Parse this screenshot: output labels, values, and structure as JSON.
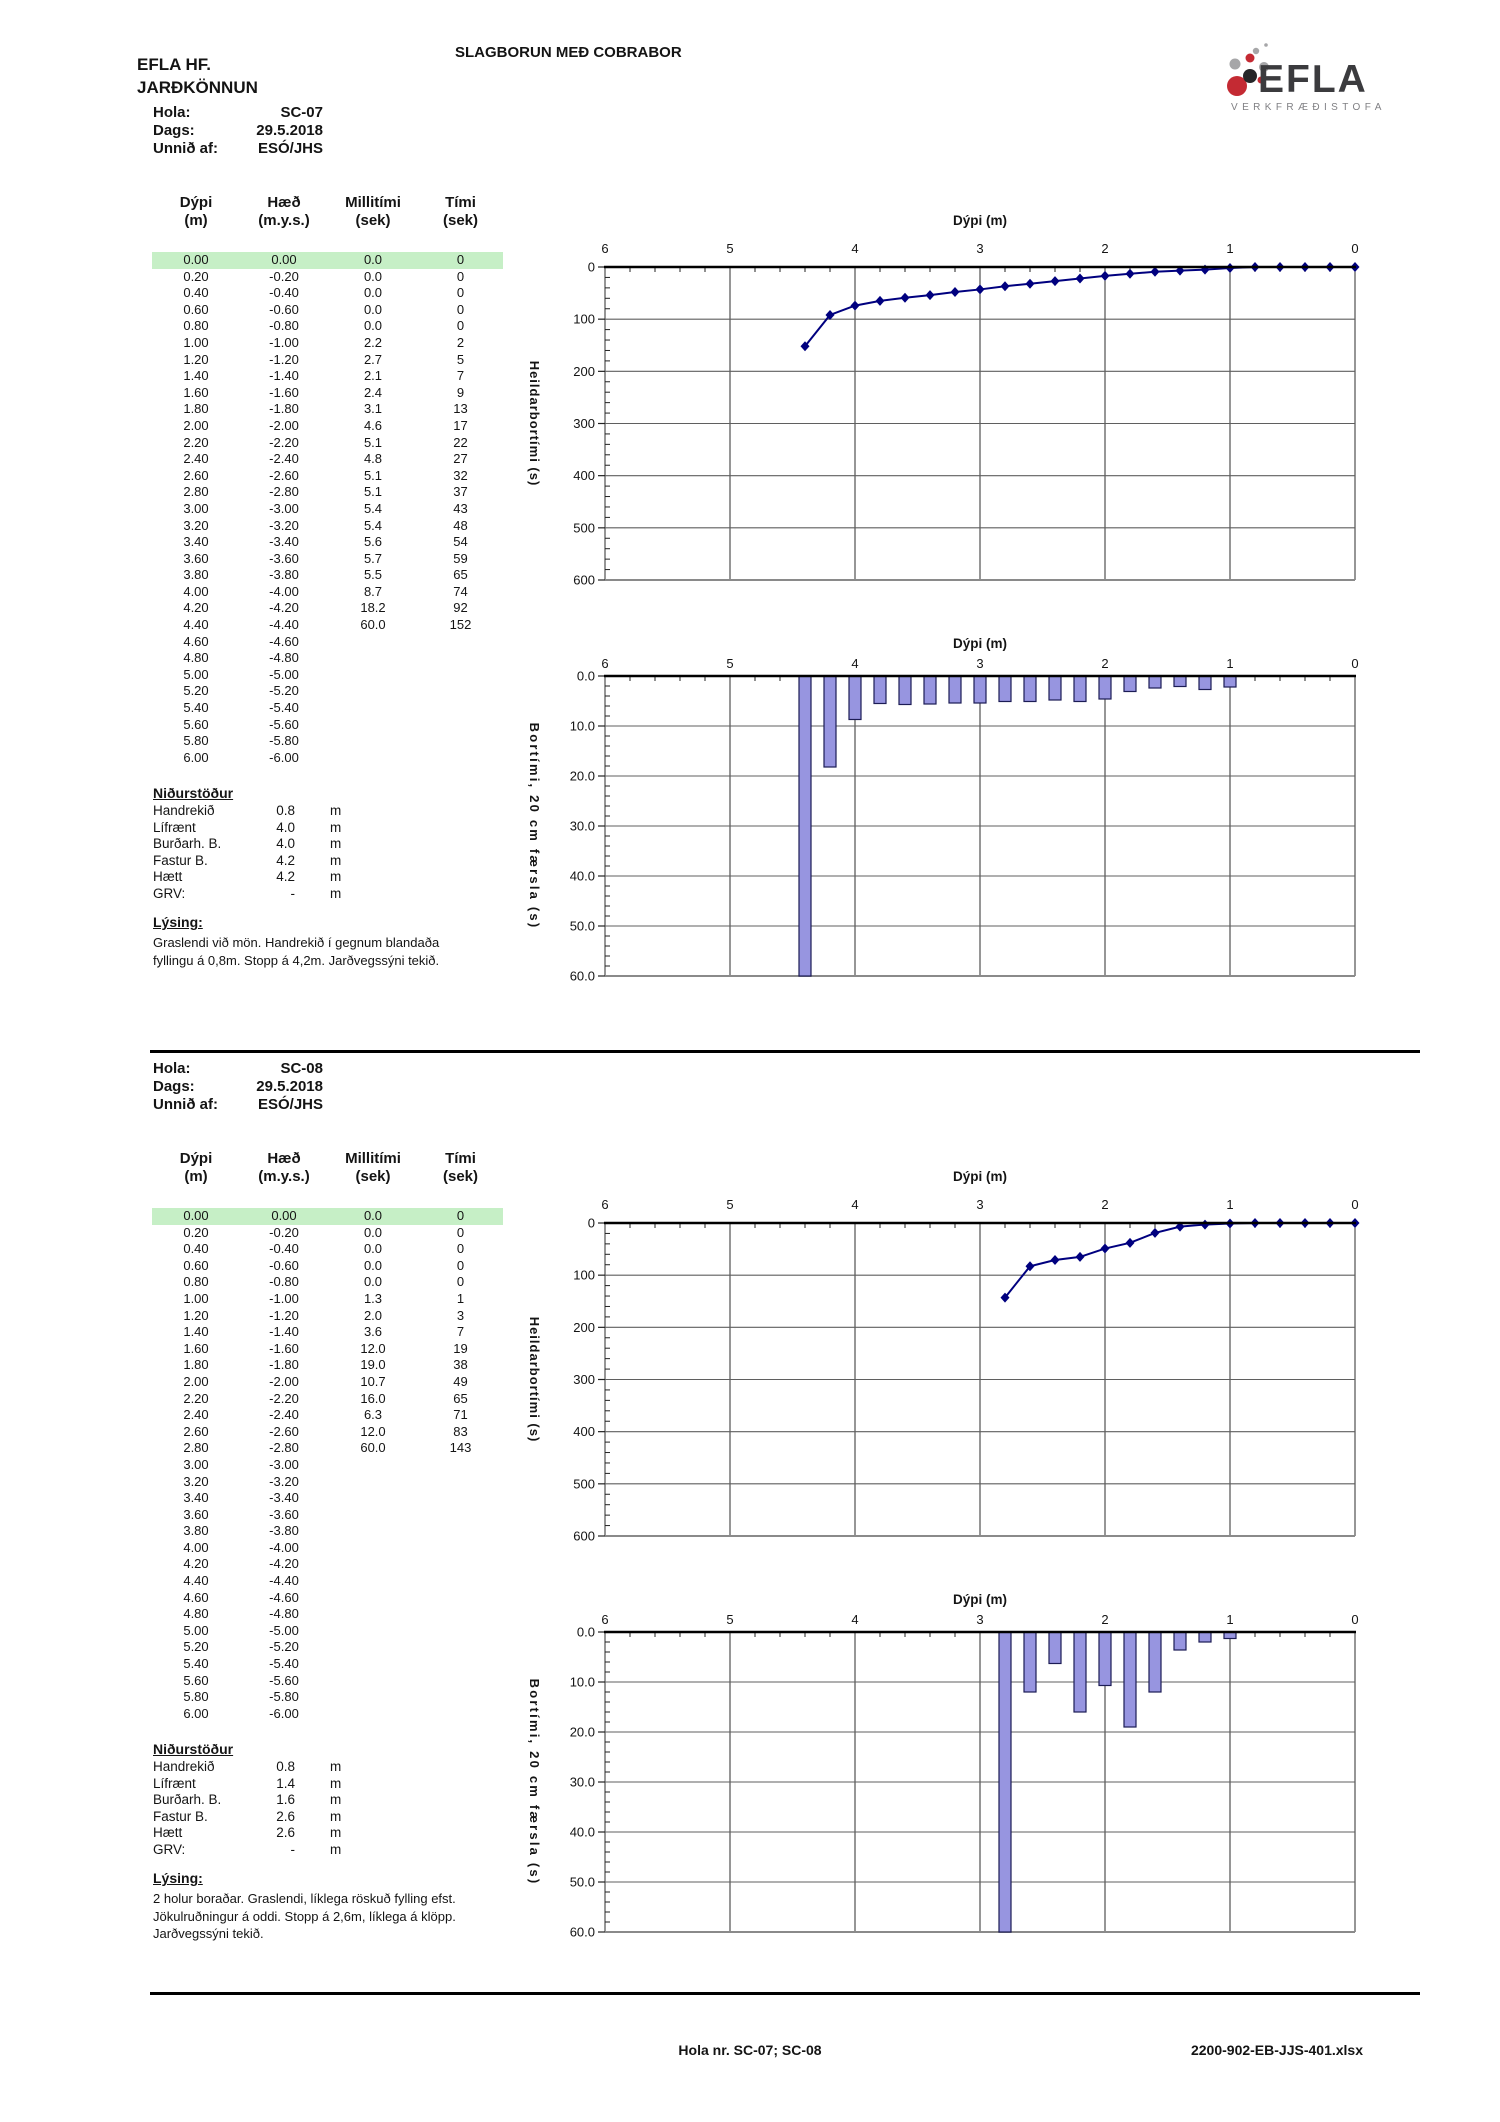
{
  "header": {
    "company": "EFLA HF.",
    "department": "JARÐKÖNNUN",
    "title": "SLAGBORUN MEÐ COBRABOR",
    "logo": {
      "name": "EFLA",
      "subtitle": "VERKFRÆÐISTOFA"
    }
  },
  "info_labels": {
    "hola": "Hola:",
    "dags": "Dags:",
    "unnid": "Unnið af:"
  },
  "table_headers": [
    {
      "l1": "Dýpi",
      "l2": "(m)"
    },
    {
      "l1": "Hæð",
      "l2": "(m.y.s.)"
    },
    {
      "l1": "Millitími",
      "l2": "(sek)"
    },
    {
      "l1": "Tími",
      "l2": "(sek)"
    }
  ],
  "results_header": "Niðurstöður",
  "lysing_header": "Lýsing:",
  "sections": [
    {
      "hola": "SC-07",
      "dags": "29.5.2018",
      "unnid": "ESÓ/JHS",
      "rows": [
        [
          "0.00",
          "0.00",
          "0.0",
          "0"
        ],
        [
          "0.20",
          "-0.20",
          "0.0",
          "0"
        ],
        [
          "0.40",
          "-0.40",
          "0.0",
          "0"
        ],
        [
          "0.60",
          "-0.60",
          "0.0",
          "0"
        ],
        [
          "0.80",
          "-0.80",
          "0.0",
          "0"
        ],
        [
          "1.00",
          "-1.00",
          "2.2",
          "2"
        ],
        [
          "1.20",
          "-1.20",
          "2.7",
          "5"
        ],
        [
          "1.40",
          "-1.40",
          "2.1",
          "7"
        ],
        [
          "1.60",
          "-1.60",
          "2.4",
          "9"
        ],
        [
          "1.80",
          "-1.80",
          "3.1",
          "13"
        ],
        [
          "2.00",
          "-2.00",
          "4.6",
          "17"
        ],
        [
          "2.20",
          "-2.20",
          "5.1",
          "22"
        ],
        [
          "2.40",
          "-2.40",
          "4.8",
          "27"
        ],
        [
          "2.60",
          "-2.60",
          "5.1",
          "32"
        ],
        [
          "2.80",
          "-2.80",
          "5.1",
          "37"
        ],
        [
          "3.00",
          "-3.00",
          "5.4",
          "43"
        ],
        [
          "3.20",
          "-3.20",
          "5.4",
          "48"
        ],
        [
          "3.40",
          "-3.40",
          "5.6",
          "54"
        ],
        [
          "3.60",
          "-3.60",
          "5.7",
          "59"
        ],
        [
          "3.80",
          "-3.80",
          "5.5",
          "65"
        ],
        [
          "4.00",
          "-4.00",
          "8.7",
          "74"
        ],
        [
          "4.20",
          "-4.20",
          "18.2",
          "92"
        ],
        [
          "4.40",
          "-4.40",
          "60.0",
          "152"
        ],
        [
          "4.60",
          "-4.60",
          "",
          ""
        ],
        [
          "4.80",
          "-4.80",
          "",
          ""
        ],
        [
          "5.00",
          "-5.00",
          "",
          ""
        ],
        [
          "5.20",
          "-5.20",
          "",
          ""
        ],
        [
          "5.40",
          "-5.40",
          "",
          ""
        ],
        [
          "5.60",
          "-5.60",
          "",
          ""
        ],
        [
          "5.80",
          "-5.80",
          "",
          ""
        ],
        [
          "6.00",
          "-6.00",
          "",
          ""
        ]
      ],
      "results": [
        {
          "label": "Handrekið",
          "value": "0.8",
          "unit": "m"
        },
        {
          "label": "Lífrænt",
          "value": "4.0",
          "unit": "m"
        },
        {
          "label": "Burðarh. B.",
          "value": "4.0",
          "unit": "m"
        },
        {
          "label": "Fastur B.",
          "value": "4.2",
          "unit": "m"
        },
        {
          "label": "Hætt",
          "value": "4.2",
          "unit": "m"
        },
        {
          "label": "GRV:",
          "value": "-",
          "unit": "m"
        }
      ],
      "lysing_lines": [
        "Graslendi við mön. Handrekið í gegnum blandaða",
        "fyllingu á 0,8m. Stopp á 4,2m. Jarðvegssýni tekið."
      ]
    },
    {
      "hola": "SC-08",
      "dags": "29.5.2018",
      "unnid": "ESÓ/JHS",
      "rows": [
        [
          "0.00",
          "0.00",
          "0.0",
          "0"
        ],
        [
          "0.20",
          "-0.20",
          "0.0",
          "0"
        ],
        [
          "0.40",
          "-0.40",
          "0.0",
          "0"
        ],
        [
          "0.60",
          "-0.60",
          "0.0",
          "0"
        ],
        [
          "0.80",
          "-0.80",
          "0.0",
          "0"
        ],
        [
          "1.00",
          "-1.00",
          "1.3",
          "1"
        ],
        [
          "1.20",
          "-1.20",
          "2.0",
          "3"
        ],
        [
          "1.40",
          "-1.40",
          "3.6",
          "7"
        ],
        [
          "1.60",
          "-1.60",
          "12.0",
          "19"
        ],
        [
          "1.80",
          "-1.80",
          "19.0",
          "38"
        ],
        [
          "2.00",
          "-2.00",
          "10.7",
          "49"
        ],
        [
          "2.20",
          "-2.20",
          "16.0",
          "65"
        ],
        [
          "2.40",
          "-2.40",
          "6.3",
          "71"
        ],
        [
          "2.60",
          "-2.60",
          "12.0",
          "83"
        ],
        [
          "2.80",
          "-2.80",
          "60.0",
          "143"
        ],
        [
          "3.00",
          "-3.00",
          "",
          ""
        ],
        [
          "3.20",
          "-3.20",
          "",
          ""
        ],
        [
          "3.40",
          "-3.40",
          "",
          ""
        ],
        [
          "3.60",
          "-3.60",
          "",
          ""
        ],
        [
          "3.80",
          "-3.80",
          "",
          ""
        ],
        [
          "4.00",
          "-4.00",
          "",
          ""
        ],
        [
          "4.20",
          "-4.20",
          "",
          ""
        ],
        [
          "4.40",
          "-4.40",
          "",
          ""
        ],
        [
          "4.60",
          "-4.60",
          "",
          ""
        ],
        [
          "4.80",
          "-4.80",
          "",
          ""
        ],
        [
          "5.00",
          "-5.00",
          "",
          ""
        ],
        [
          "5.20",
          "-5.20",
          "",
          ""
        ],
        [
          "5.40",
          "-5.40",
          "",
          ""
        ],
        [
          "5.60",
          "-5.60",
          "",
          ""
        ],
        [
          "5.80",
          "-5.80",
          "",
          ""
        ],
        [
          "6.00",
          "-6.00",
          "",
          ""
        ]
      ],
      "results": [
        {
          "label": "Handrekið",
          "value": "0.8",
          "unit": "m"
        },
        {
          "label": "Lífrænt",
          "value": "1.4",
          "unit": "m"
        },
        {
          "label": "Burðarh. B.",
          "value": "1.6",
          "unit": "m"
        },
        {
          "label": "Fastur B.",
          "value": "2.6",
          "unit": "m"
        },
        {
          "label": "Hætt",
          "value": "2.6",
          "unit": "m"
        },
        {
          "label": "GRV:",
          "value": "-",
          "unit": "m"
        }
      ],
      "lysing_lines": [
        "2 holur boraðar. Graslendi, líklega röskuð fylling efst.",
        "Jökulruðningur á oddi. Stopp á 2,6m, líklega á klöpp.",
        "Jarðvegssýni tekið."
      ]
    }
  ],
  "chart_data": [
    {
      "type": "line",
      "name": "line-chart-sc07",
      "title": "Dýpi (m)",
      "ylabel": "Heildarbortími (s)",
      "x_ticks": [
        "6",
        "5",
        "4",
        "3",
        "2",
        "1",
        "0"
      ],
      "y_ticks": [
        "0",
        "100",
        "200",
        "300",
        "400",
        "500",
        "600"
      ],
      "xlim": [
        6,
        0
      ],
      "ylim": [
        0,
        600
      ],
      "y_inverted": true,
      "grid": true,
      "points": [
        [
          0,
          0
        ],
        [
          0.2,
          0
        ],
        [
          0.4,
          0
        ],
        [
          0.6,
          0
        ],
        [
          0.8,
          0
        ],
        [
          1,
          2
        ],
        [
          1.2,
          5
        ],
        [
          1.4,
          7
        ],
        [
          1.6,
          9
        ],
        [
          1.8,
          13
        ],
        [
          2,
          17
        ],
        [
          2.2,
          22
        ],
        [
          2.4,
          27
        ],
        [
          2.6,
          32
        ],
        [
          2.8,
          37
        ],
        [
          3,
          43
        ],
        [
          3.2,
          48
        ],
        [
          3.4,
          54
        ],
        [
          3.6,
          59
        ],
        [
          3.8,
          65
        ],
        [
          4,
          74
        ],
        [
          4.2,
          92
        ],
        [
          4.4,
          152
        ]
      ]
    },
    {
      "type": "bar",
      "name": "bar-chart-sc07",
      "title": "Dýpi (m)",
      "ylabel": "Bortími,  20 cm færsla (s)",
      "x_ticks": [
        "6",
        "5",
        "4",
        "3",
        "2",
        "1",
        "0"
      ],
      "y_ticks": [
        "0.0",
        "10.0",
        "20.0",
        "30.0",
        "40.0",
        "50.0",
        "60.0"
      ],
      "xlim": [
        6,
        0
      ],
      "ylim": [
        0,
        60
      ],
      "y_inverted": true,
      "grid": true,
      "bars": [
        [
          1,
          2.2
        ],
        [
          1.2,
          2.7
        ],
        [
          1.4,
          2.1
        ],
        [
          1.6,
          2.4
        ],
        [
          1.8,
          3.1
        ],
        [
          2,
          4.6
        ],
        [
          2.2,
          5.1
        ],
        [
          2.4,
          4.8
        ],
        [
          2.6,
          5.1
        ],
        [
          2.8,
          5.1
        ],
        [
          3,
          5.4
        ],
        [
          3.2,
          5.4
        ],
        [
          3.4,
          5.6
        ],
        [
          3.6,
          5.7
        ],
        [
          3.8,
          5.5
        ],
        [
          4,
          8.7
        ],
        [
          4.2,
          18.2
        ],
        [
          4.4,
          60
        ]
      ]
    },
    {
      "type": "line",
      "name": "line-chart-sc08",
      "title": "Dýpi (m)",
      "ylabel": "Heildarbortími (s)",
      "x_ticks": [
        "6",
        "5",
        "4",
        "3",
        "2",
        "1",
        "0"
      ],
      "y_ticks": [
        "0",
        "100",
        "200",
        "300",
        "400",
        "500",
        "600"
      ],
      "xlim": [
        6,
        0
      ],
      "ylim": [
        0,
        600
      ],
      "y_inverted": true,
      "grid": true,
      "points": [
        [
          0,
          0
        ],
        [
          0.2,
          0
        ],
        [
          0.4,
          0
        ],
        [
          0.6,
          0
        ],
        [
          0.8,
          0
        ],
        [
          1,
          1
        ],
        [
          1.2,
          3
        ],
        [
          1.4,
          7
        ],
        [
          1.6,
          19
        ],
        [
          1.8,
          38
        ],
        [
          2,
          49
        ],
        [
          2.2,
          65
        ],
        [
          2.4,
          71
        ],
        [
          2.6,
          83
        ],
        [
          2.8,
          143
        ]
      ]
    },
    {
      "type": "bar",
      "name": "bar-chart-sc08",
      "title": "Dýpi (m)",
      "ylabel": "Bortími,  20 cm færsla (s)",
      "x_ticks": [
        "6",
        "5",
        "4",
        "3",
        "2",
        "1",
        "0"
      ],
      "y_ticks": [
        "0.0",
        "10.0",
        "20.0",
        "30.0",
        "40.0",
        "50.0",
        "60.0"
      ],
      "xlim": [
        6,
        0
      ],
      "ylim": [
        0,
        60
      ],
      "y_inverted": true,
      "grid": true,
      "bars": [
        [
          1,
          1.3
        ],
        [
          1.2,
          2.0
        ],
        [
          1.4,
          3.6
        ],
        [
          1.6,
          12.0
        ],
        [
          1.8,
          19.0
        ],
        [
          2,
          10.7
        ],
        [
          2.2,
          16.0
        ],
        [
          2.4,
          6.3
        ],
        [
          2.6,
          12.0
        ],
        [
          2.8,
          60.0
        ]
      ]
    }
  ],
  "footer": {
    "center": "Hola nr. SC-07; SC-08",
    "right": "2200-902-EB-JJS-401.xlsx"
  },
  "colors": {
    "line": "#00007F",
    "bar_fill": "#9795E0",
    "bar_stroke": "#1C1C55",
    "highlight_row": "#C6EFC6",
    "logo_red": "#C42A33",
    "logo_gray": "#A6A6A8",
    "logo_dark": "#262628"
  }
}
